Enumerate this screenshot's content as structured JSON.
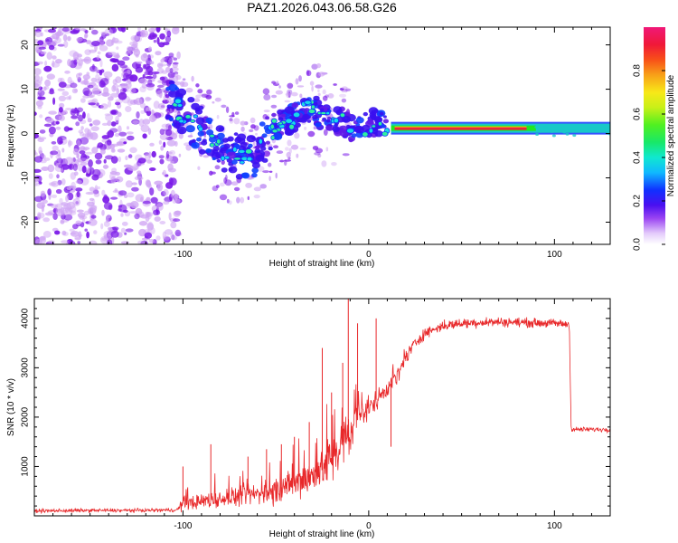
{
  "figure_title": "PAZ1.2026.043.06.58.G26",
  "colors": {
    "snr_line": "#e8282a",
    "ridge": "#e8283a",
    "ridge_halo_inner": "#20e820",
    "ridge_halo_outer": "#18c8c8",
    "noise_dark": "#7a18e8",
    "noise_light": "#cfa4f4",
    "frame": "#000000"
  },
  "chart_data": [
    {
      "type": "heatmap",
      "name": "spectrogram",
      "title": "PAZ1.2026.043.06.58.G26",
      "xlabel": "Height of straight line (km)",
      "ylabel": "Frequency (Hz)",
      "xlim": [
        -180,
        130
      ],
      "ylim": [
        -25,
        24
      ],
      "xticks": [
        -100,
        0,
        100
      ],
      "yticks": [
        -20,
        -10,
        0,
        10,
        20
      ],
      "ridge": {
        "x": [
          -108,
          -102,
          -96,
          -90,
          -84,
          -78,
          -72,
          -66,
          -60,
          -54,
          -48,
          -42,
          -36,
          -30,
          -26,
          -20,
          -16,
          -12,
          -8,
          -4,
          0,
          4,
          8,
          12,
          20,
          40,
          60,
          85,
          100,
          115,
          130
        ],
        "y": [
          8,
          5,
          3,
          1,
          -2,
          -4,
          -5,
          -6,
          -4,
          0,
          2,
          3,
          5,
          6,
          4,
          2,
          3,
          2,
          1,
          1,
          2,
          3,
          2,
          1,
          1,
          1,
          1,
          1,
          0.5,
          0.5,
          0.5
        ]
      },
      "noise_region": {
        "x_from": -180,
        "x_to": -108,
        "y_from": -25,
        "y_to": 24
      },
      "colorbar": {
        "label": "Normalized spectral amplitude",
        "range": [
          0,
          1
        ],
        "ticks": [
          0.0,
          0.2,
          0.4,
          0.6,
          0.8
        ],
        "tick_labels": [
          "0.0",
          "0.2",
          "0.4",
          "0.6",
          "0.8"
        ]
      }
    },
    {
      "type": "line",
      "name": "snr",
      "xlabel": "Height of straight line (km)",
      "ylabel": "SNR (10 * v/v)",
      "xlim": [
        -180,
        130
      ],
      "ylim": [
        0,
        4400
      ],
      "xticks": [
        -100,
        0,
        100
      ],
      "yticks": [
        1000,
        2000,
        3000,
        4000
      ],
      "envelope": {
        "x": [
          -180,
          -150,
          -125,
          -103,
          -100,
          -90,
          -80,
          -70,
          -60,
          -50,
          -40,
          -30,
          -20,
          -10,
          -5,
          0,
          5,
          10,
          15,
          20,
          25,
          30,
          40,
          50,
          60,
          70,
          80,
          90,
          100,
          108,
          109,
          115,
          130
        ],
        "y": [
          100,
          110,
          110,
          120,
          250,
          300,
          350,
          400,
          450,
          500,
          650,
          800,
          1200,
          1700,
          2000,
          2150,
          2400,
          2600,
          2800,
          3200,
          3500,
          3700,
          3850,
          3900,
          3920,
          3930,
          3920,
          3910,
          3900,
          3880,
          1750,
          1750,
          1750
        ]
      },
      "noise_std": {
        "x": [
          -180,
          -103,
          -100,
          -60,
          -40,
          -25,
          -15,
          -5,
          0,
          10,
          20,
          30,
          108,
          109,
          130
        ],
        "y": [
          30,
          30,
          110,
          180,
          250,
          380,
          420,
          260,
          180,
          160,
          130,
          90,
          70,
          40,
          40
        ]
      },
      "spikes": [
        {
          "x": -100,
          "y": 1000
        },
        {
          "x": -85,
          "y": 1450
        },
        {
          "x": -65,
          "y": 1200
        },
        {
          "x": -55,
          "y": 1350
        },
        {
          "x": -47,
          "y": 1450
        },
        {
          "x": -40,
          "y": 1600
        },
        {
          "x": -32,
          "y": 1900
        },
        {
          "x": -25,
          "y": 3400
        },
        {
          "x": -20,
          "y": 2500
        },
        {
          "x": -14,
          "y": 3100
        },
        {
          "x": -11,
          "y": 4400
        },
        {
          "x": -6,
          "y": 3900
        },
        {
          "x": 4,
          "y": 4000
        },
        {
          "x": 12,
          "y": 1400
        }
      ]
    }
  ]
}
